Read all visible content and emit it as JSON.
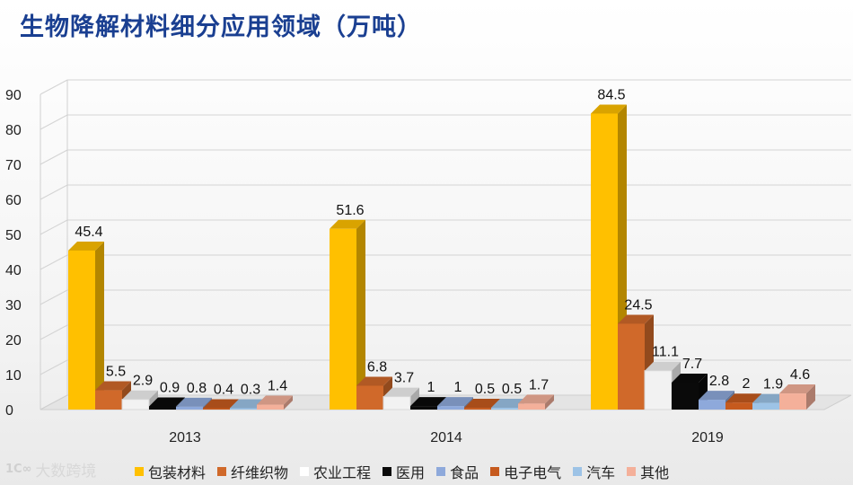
{
  "title": "生物降解材料细分应用领域（万吨）",
  "watermark": "大数跨境",
  "chart_data": {
    "type": "bar",
    "categories": [
      "2013",
      "2014",
      "2019"
    ],
    "ylim": [
      0,
      90
    ],
    "yticks": [
      0,
      10,
      20,
      30,
      40,
      50,
      60,
      70,
      80,
      90
    ],
    "grid": true,
    "legend_position": "bottom",
    "series": [
      {
        "name": "包装材料",
        "color": "#ffc000",
        "values": [
          45.4,
          51.6,
          84.5
        ],
        "labels": [
          "45.4",
          "51.6",
          "84.5"
        ]
      },
      {
        "name": "纤维织物",
        "color": "#d0692a",
        "values": [
          5.5,
          6.8,
          24.5
        ],
        "labels": [
          "5.5",
          "6.8",
          "24.5"
        ]
      },
      {
        "name": "农业工程",
        "color": "#f2f2f2",
        "values": [
          2.9,
          3.7,
          11.1
        ],
        "labels": [
          "2.9",
          "3.7",
          "11.1"
        ]
      },
      {
        "name": "医用",
        "color": "#0a0a0a",
        "values": [
          0.9,
          1,
          7.7
        ],
        "labels": [
          "0.9",
          "1",
          "7.7"
        ]
      },
      {
        "name": "食品",
        "color": "#8ea9db",
        "values": [
          0.8,
          1,
          2.8
        ],
        "labels": [
          "0.8",
          "1",
          "2.8"
        ]
      },
      {
        "name": "电子电气",
        "color": "#c65a1e",
        "values": [
          0.4,
          0.5,
          2
        ],
        "labels": [
          "0.4",
          "0.5",
          "2"
        ]
      },
      {
        "name": "汽车",
        "color": "#9dc3e6",
        "values": [
          0.3,
          0.5,
          1.9
        ],
        "labels": [
          "0.3",
          "0.5",
          "1.9"
        ]
      },
      {
        "name": "其他",
        "color": "#f4b09a",
        "values": [
          1.4,
          1.7,
          4.6
        ],
        "labels": [
          "1.4",
          "1.7",
          "4.6"
        ]
      }
    ]
  }
}
